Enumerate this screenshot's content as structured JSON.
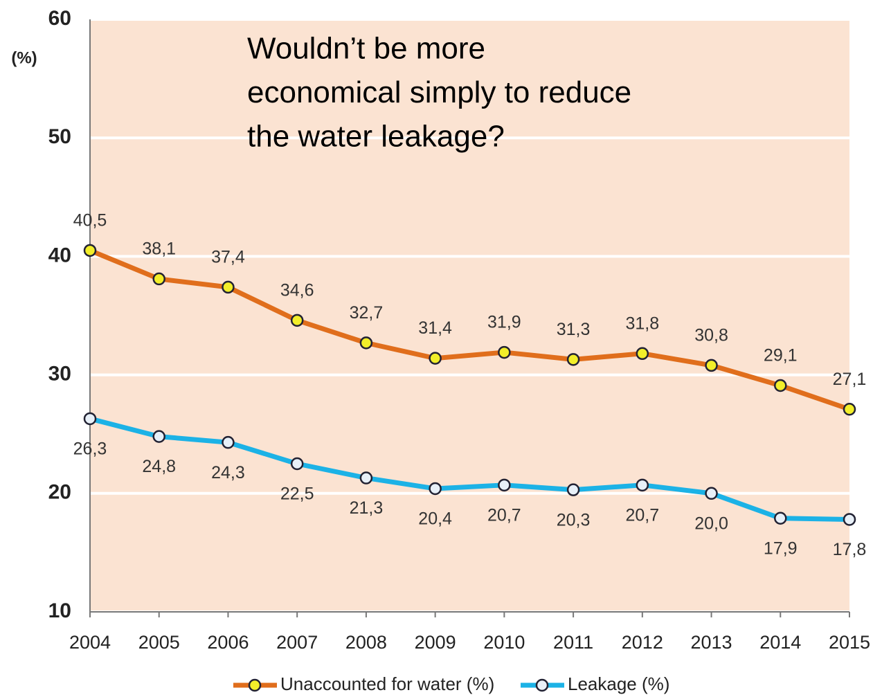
{
  "chart_data": {
    "type": "line",
    "annotation": [
      "Wouldn’t be more",
      "economical simply to reduce",
      "the water leakage?"
    ],
    "y_label": "(%)",
    "categories": [
      "2004",
      "2005",
      "2006",
      "2007",
      "2008",
      "2009",
      "2010",
      "2011",
      "2012",
      "2013",
      "2014",
      "2015"
    ],
    "series": [
      {
        "name": "Unaccounted for water (%)",
        "color": "#e06e1c",
        "marker_color": "#f2ee2a",
        "values": [
          40.5,
          38.1,
          37.4,
          34.6,
          32.7,
          31.4,
          31.9,
          31.3,
          31.8,
          30.8,
          29.1,
          27.1
        ],
        "value_labels": [
          "40,5",
          "38,1",
          "37,4",
          "34,6",
          "32,7",
          "31,4",
          "31,9",
          "31,3",
          "31,8",
          "30,8",
          "29,1",
          "27,1"
        ]
      },
      {
        "name": "Leakage (%)",
        "color": "#1cb2e6",
        "marker_color": "#e8f0f8",
        "values": [
          26.3,
          24.8,
          24.3,
          22.5,
          21.3,
          20.4,
          20.7,
          20.3,
          20.7,
          20.0,
          17.9,
          17.8
        ],
        "value_labels": [
          "26,3",
          "24,8",
          "24,3",
          "22,5",
          "21,3",
          "20,4",
          "20,7",
          "20,3",
          "20,7",
          "20,0",
          "17,9",
          "17,8"
        ]
      }
    ],
    "ylim": [
      10,
      60
    ],
    "yticks": [
      10,
      20,
      30,
      40,
      50,
      60
    ],
    "grid": true,
    "plot_background": "#fbe3d2"
  }
}
